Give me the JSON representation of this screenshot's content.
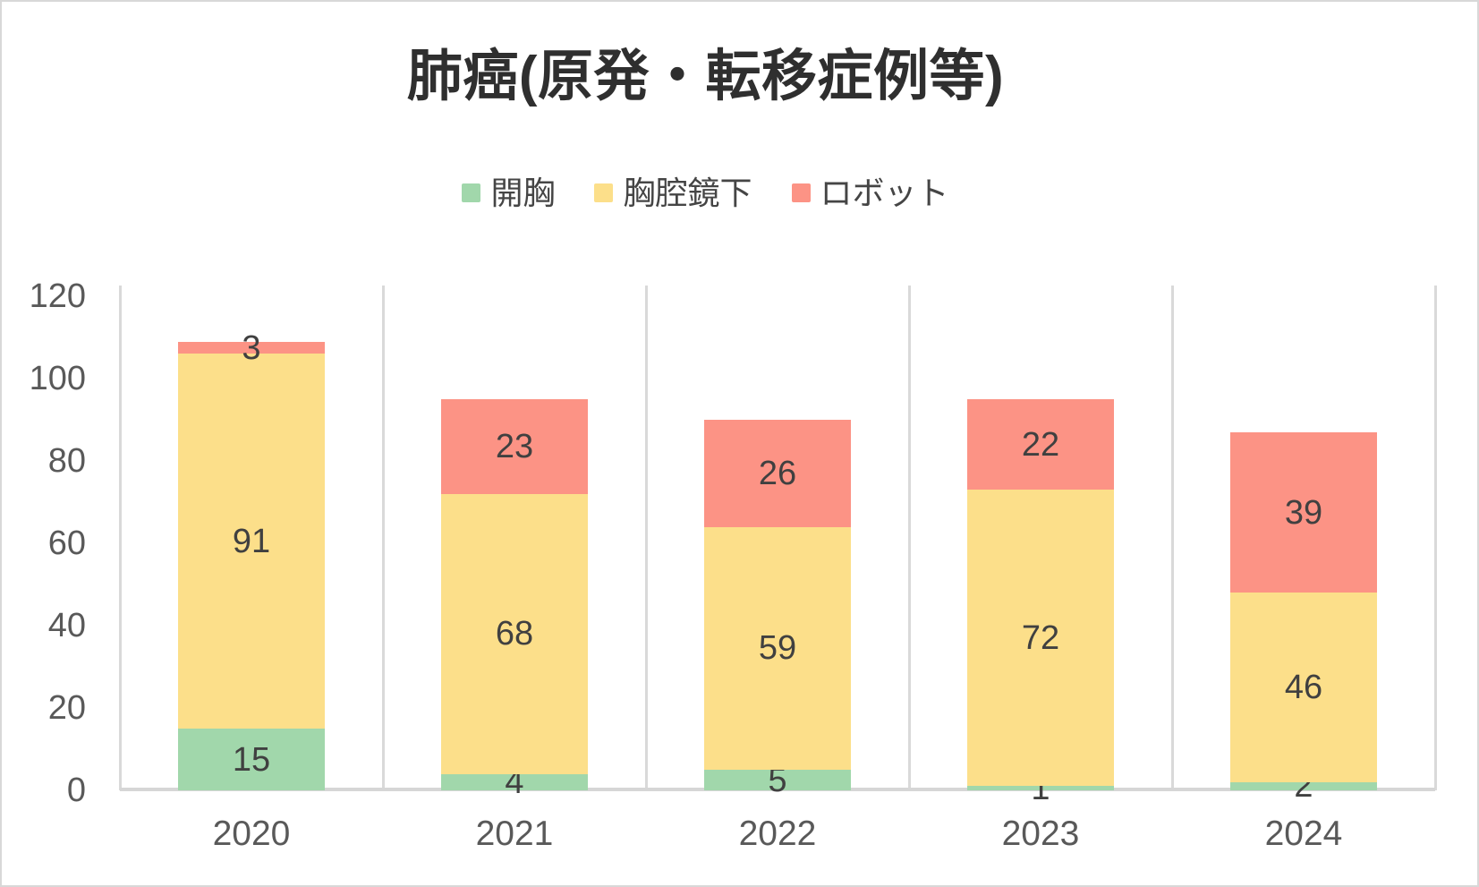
{
  "title": "肺癌(原発・転移症例等)",
  "legend": {
    "items": [
      {
        "label": "開胸",
        "color": "#A1D7AB"
      },
      {
        "label": "胸腔鏡下",
        "color": "#FCDF8A"
      },
      {
        "label": "ロボット",
        "color": "#FC9385"
      }
    ]
  },
  "chart_data": {
    "type": "bar",
    "stacked": true,
    "title": "肺癌(原発・転移症例等)",
    "categories": [
      "2020",
      "2021",
      "2022",
      "2023",
      "2024"
    ],
    "series": [
      {
        "name": "開胸",
        "color": "#A1D7AB",
        "values": [
          15,
          4,
          5,
          1,
          2
        ]
      },
      {
        "name": "胸腔鏡下",
        "color": "#FCDF8A",
        "values": [
          91,
          68,
          59,
          72,
          46
        ]
      },
      {
        "name": "ロボット",
        "color": "#FC9385",
        "values": [
          3,
          23,
          26,
          22,
          39
        ]
      }
    ],
    "ylim": [
      0,
      120
    ],
    "yticks": [
      0,
      20,
      40,
      60,
      80,
      100,
      120
    ],
    "xlabel": "",
    "ylabel": "",
    "data_labels": true,
    "legend_position": "top",
    "gridlines": "vertical category separator lines only, x-axis baseline, no horizontal gridlines"
  },
  "colors": {
    "background": "#FFFFFF",
    "card_border": "#D8D8D8",
    "axis_line": "#D9D9D9",
    "axis_text": "#595959",
    "data_label_text": "#404040",
    "title_text": "#2F2F2F",
    "legend_text": "#454545"
  }
}
